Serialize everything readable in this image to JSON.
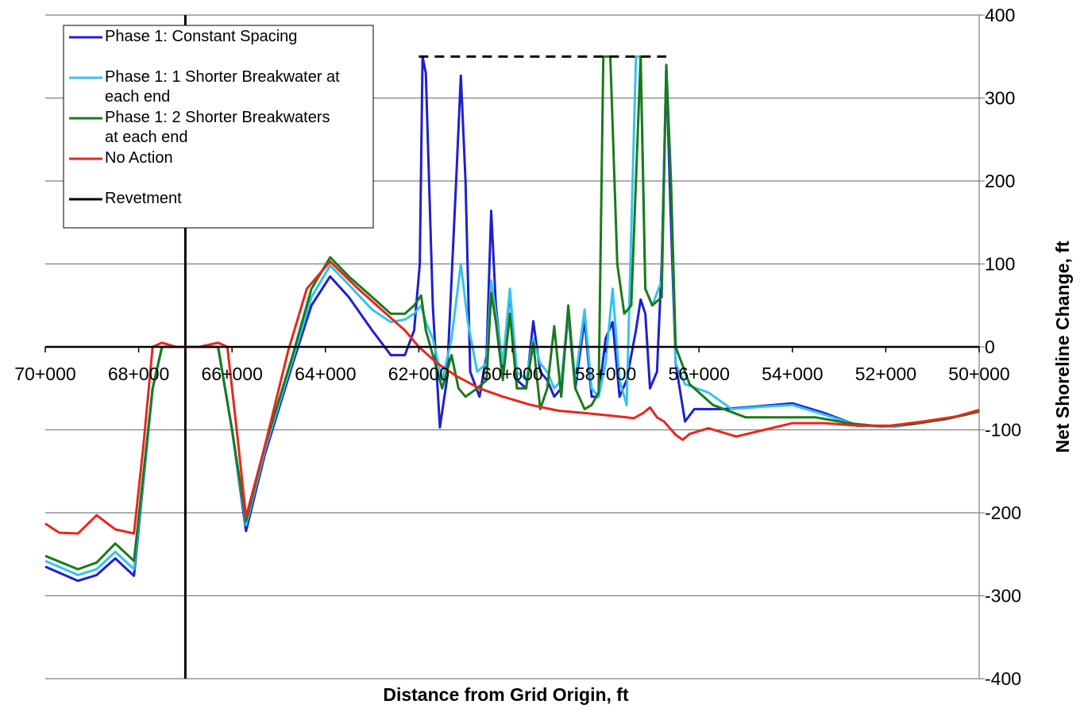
{
  "chart_data": {
    "type": "line",
    "xlabel": "Distance from Grid Origin, ft",
    "ylabel": "Net Shoreline Change, ft",
    "x_reversed": true,
    "xlim": [
      70000,
      50000
    ],
    "ylim": [
      -400,
      400
    ],
    "y_axis_position": "right",
    "grid": "horizontal",
    "legend_position": "top-left",
    "x_ticks": [
      {
        "value": 70000,
        "label": "70+000"
      },
      {
        "value": 68000,
        "label": "68+000"
      },
      {
        "value": 66000,
        "label": "66+000"
      },
      {
        "value": 64000,
        "label": "64+000"
      },
      {
        "value": 62000,
        "label": "62+000"
      },
      {
        "value": 60000,
        "label": "60+000"
      },
      {
        "value": 58000,
        "label": "58+000"
      },
      {
        "value": 56000,
        "label": "56+000"
      },
      {
        "value": 54000,
        "label": "54+000"
      },
      {
        "value": 52000,
        "label": "52+000"
      },
      {
        "value": 50000,
        "label": "50+000"
      }
    ],
    "y_ticks": [
      {
        "value": 400,
        "label": "400"
      },
      {
        "value": 300,
        "label": "300"
      },
      {
        "value": 200,
        "label": "200"
      },
      {
        "value": 100,
        "label": "100"
      },
      {
        "value": 0,
        "label": "0"
      },
      {
        "value": -100,
        "label": "-100"
      },
      {
        "value": -200,
        "label": "-200"
      },
      {
        "value": -300,
        "label": "-300"
      },
      {
        "value": -400,
        "label": "-400"
      }
    ],
    "series": [
      {
        "name": "Phase 1: Constant Spacing",
        "color": "#1f1fd0",
        "points": [
          [
            70000,
            -265
          ],
          [
            69300,
            -282
          ],
          [
            68900,
            -275
          ],
          [
            68500,
            -255
          ],
          [
            68100,
            -276
          ],
          [
            67700,
            -50
          ],
          [
            67500,
            0
          ],
          [
            67300,
            0
          ],
          [
            67000,
            0
          ],
          [
            66700,
            0
          ],
          [
            66300,
            0
          ],
          [
            66000,
            -100
          ],
          [
            65700,
            -222
          ],
          [
            65300,
            -130
          ],
          [
            64700,
            -20
          ],
          [
            64300,
            50
          ],
          [
            63900,
            85
          ],
          [
            63500,
            60
          ],
          [
            63000,
            20
          ],
          [
            62600,
            -10
          ],
          [
            62300,
            -10
          ],
          [
            62100,
            20
          ],
          [
            61980,
            100
          ],
          [
            61920,
            350
          ],
          [
            61850,
            330
          ],
          [
            61700,
            50
          ],
          [
            61550,
            -97
          ],
          [
            61400,
            -40
          ],
          [
            61200,
            200
          ],
          [
            61100,
            327
          ],
          [
            61000,
            200
          ],
          [
            60900,
            -30
          ],
          [
            60700,
            -60
          ],
          [
            60550,
            -10
          ],
          [
            60450,
            164
          ],
          [
            60350,
            50
          ],
          [
            60200,
            -30
          ],
          [
            60050,
            68
          ],
          [
            59900,
            -40
          ],
          [
            59700,
            -50
          ],
          [
            59550,
            31
          ],
          [
            59400,
            -30
          ],
          [
            59250,
            -40
          ],
          [
            59100,
            -60
          ],
          [
            58950,
            -50
          ],
          [
            58800,
            40
          ],
          [
            58650,
            -50
          ],
          [
            58450,
            33
          ],
          [
            58300,
            -60
          ],
          [
            58150,
            -60
          ],
          [
            58000,
            10
          ],
          [
            57850,
            30
          ],
          [
            57700,
            -60
          ],
          [
            57550,
            -40
          ],
          [
            57350,
            20
          ],
          [
            57250,
            57
          ],
          [
            57150,
            40
          ],
          [
            57050,
            -50
          ],
          [
            56900,
            -30
          ],
          [
            56800,
            100
          ],
          [
            56700,
            335
          ],
          [
            56600,
            150
          ],
          [
            56500,
            -20
          ],
          [
            56300,
            -90
          ],
          [
            56100,
            -75
          ],
          [
            55500,
            -75
          ],
          [
            54800,
            -72
          ],
          [
            54000,
            -68
          ],
          [
            53300,
            -80
          ],
          [
            52600,
            -95
          ],
          [
            51800,
            -96
          ],
          [
            51100,
            -90
          ],
          [
            50300,
            -82
          ],
          [
            50000,
            -77
          ]
        ]
      },
      {
        "name": "Phase 1: 1 Shorter Breakwater at each end",
        "color": "#33c4ee",
        "points": [
          [
            70000,
            -258
          ],
          [
            69300,
            -275
          ],
          [
            68900,
            -268
          ],
          [
            68500,
            -247
          ],
          [
            68100,
            -268
          ],
          [
            67700,
            -50
          ],
          [
            67500,
            0
          ],
          [
            67300,
            0
          ],
          [
            67000,
            0
          ],
          [
            66700,
            0
          ],
          [
            66300,
            0
          ],
          [
            66000,
            -100
          ],
          [
            65700,
            -215
          ],
          [
            65300,
            -125
          ],
          [
            64700,
            -15
          ],
          [
            64300,
            60
          ],
          [
            63900,
            98
          ],
          [
            63500,
            75
          ],
          [
            63000,
            45
          ],
          [
            62600,
            30
          ],
          [
            62300,
            33
          ],
          [
            62100,
            40
          ],
          [
            61950,
            50
          ],
          [
            61850,
            30
          ],
          [
            61700,
            10
          ],
          [
            61500,
            -40
          ],
          [
            61300,
            10
          ],
          [
            61100,
            100
          ],
          [
            60950,
            30
          ],
          [
            60750,
            -30
          ],
          [
            60550,
            -20
          ],
          [
            60450,
            80
          ],
          [
            60350,
            40
          ],
          [
            60200,
            -20
          ],
          [
            60050,
            70
          ],
          [
            59900,
            -30
          ],
          [
            59700,
            -40
          ],
          [
            59550,
            10
          ],
          [
            59400,
            -20
          ],
          [
            59250,
            -30
          ],
          [
            59100,
            -50
          ],
          [
            58950,
            -40
          ],
          [
            58800,
            40
          ],
          [
            58650,
            -40
          ],
          [
            58450,
            45
          ],
          [
            58300,
            -50
          ],
          [
            58150,
            -60
          ],
          [
            58000,
            -20
          ],
          [
            57850,
            70
          ],
          [
            57700,
            -40
          ],
          [
            57550,
            -70
          ],
          [
            57350,
            350
          ],
          [
            57250,
            350
          ],
          [
            57150,
            70
          ],
          [
            57000,
            50
          ],
          [
            56800,
            80
          ],
          [
            56700,
            340
          ],
          [
            56600,
            200
          ],
          [
            56500,
            -20
          ],
          [
            56300,
            -45
          ],
          [
            55800,
            -55
          ],
          [
            55300,
            -75
          ],
          [
            54600,
            -72
          ],
          [
            54000,
            -70
          ],
          [
            53300,
            -82
          ],
          [
            52600,
            -95
          ],
          [
            51800,
            -96
          ],
          [
            51100,
            -90
          ],
          [
            50300,
            -82
          ],
          [
            50000,
            -77
          ]
        ]
      },
      {
        "name": "Phase 1: 2 Shorter Breakwaters at each end",
        "color": "#1a7a1a",
        "points": [
          [
            70000,
            -252
          ],
          [
            69300,
            -268
          ],
          [
            68900,
            -260
          ],
          [
            68500,
            -237
          ],
          [
            68100,
            -258
          ],
          [
            67700,
            -50
          ],
          [
            67500,
            0
          ],
          [
            67300,
            0
          ],
          [
            67000,
            0
          ],
          [
            66700,
            0
          ],
          [
            66300,
            0
          ],
          [
            66000,
            -100
          ],
          [
            65700,
            -210
          ],
          [
            65300,
            -120
          ],
          [
            64700,
            -10
          ],
          [
            64300,
            70
          ],
          [
            63900,
            108
          ],
          [
            63500,
            85
          ],
          [
            63000,
            60
          ],
          [
            62600,
            40
          ],
          [
            62300,
            40
          ],
          [
            62100,
            50
          ],
          [
            61950,
            62
          ],
          [
            61850,
            20
          ],
          [
            61700,
            -10
          ],
          [
            61500,
            -50
          ],
          [
            61300,
            -10
          ],
          [
            61150,
            -50
          ],
          [
            61000,
            -60
          ],
          [
            60750,
            -50
          ],
          [
            60550,
            -40
          ],
          [
            60450,
            65
          ],
          [
            60350,
            30
          ],
          [
            60200,
            -40
          ],
          [
            60050,
            40
          ],
          [
            59900,
            -50
          ],
          [
            59700,
            -50
          ],
          [
            59550,
            5
          ],
          [
            59400,
            -75
          ],
          [
            59250,
            -50
          ],
          [
            59100,
            25
          ],
          [
            58950,
            -60
          ],
          [
            58800,
            50
          ],
          [
            58650,
            -50
          ],
          [
            58450,
            -75
          ],
          [
            58300,
            -70
          ],
          [
            58150,
            -55
          ],
          [
            58050,
            350
          ],
          [
            57900,
            350
          ],
          [
            57750,
            100
          ],
          [
            57600,
            40
          ],
          [
            57450,
            50
          ],
          [
            57250,
            350
          ],
          [
            57150,
            70
          ],
          [
            57000,
            50
          ],
          [
            56800,
            60
          ],
          [
            56700,
            340
          ],
          [
            56600,
            200
          ],
          [
            56500,
            0
          ],
          [
            56200,
            -45
          ],
          [
            55700,
            -70
          ],
          [
            55000,
            -85
          ],
          [
            54300,
            -85
          ],
          [
            53500,
            -85
          ],
          [
            52800,
            -92
          ],
          [
            52100,
            -96
          ],
          [
            51400,
            -93
          ],
          [
            50700,
            -87
          ],
          [
            50000,
            -78
          ]
        ]
      },
      {
        "name": "No Action",
        "color": "#e8261e",
        "points": [
          [
            70000,
            -213
          ],
          [
            69700,
            -224
          ],
          [
            69300,
            -225
          ],
          [
            68900,
            -203
          ],
          [
            68500,
            -220
          ],
          [
            68100,
            -225
          ],
          [
            67900,
            -120
          ],
          [
            67700,
            0
          ],
          [
            67500,
            5
          ],
          [
            67200,
            0
          ],
          [
            66700,
            0
          ],
          [
            66300,
            5
          ],
          [
            66100,
            0
          ],
          [
            65900,
            -100
          ],
          [
            65700,
            -205
          ],
          [
            65300,
            -120
          ],
          [
            64800,
            -5
          ],
          [
            64400,
            70
          ],
          [
            63900,
            103
          ],
          [
            63300,
            70
          ],
          [
            62700,
            40
          ],
          [
            62300,
            20
          ],
          [
            62000,
            0
          ],
          [
            61600,
            -20
          ],
          [
            61200,
            -35
          ],
          [
            60700,
            -50
          ],
          [
            60200,
            -60
          ],
          [
            59600,
            -70
          ],
          [
            59000,
            -77
          ],
          [
            58400,
            -80
          ],
          [
            57700,
            -84
          ],
          [
            57400,
            -86
          ],
          [
            57200,
            -80
          ],
          [
            57050,
            -73
          ],
          [
            56900,
            -85
          ],
          [
            56750,
            -90
          ],
          [
            56500,
            -106
          ],
          [
            56350,
            -112
          ],
          [
            56200,
            -105
          ],
          [
            55800,
            -98
          ],
          [
            55200,
            -108
          ],
          [
            54600,
            -100
          ],
          [
            54000,
            -92
          ],
          [
            53300,
            -92
          ],
          [
            52600,
            -95
          ],
          [
            51900,
            -95
          ],
          [
            51200,
            -90
          ],
          [
            50500,
            -84
          ],
          [
            50000,
            -76
          ]
        ]
      },
      {
        "name": "Revetment",
        "color": "#000000",
        "x": 67000
      }
    ],
    "dashed_line": {
      "x": [
        62000,
        56700
      ],
      "y": 350,
      "color": "#000000"
    }
  }
}
